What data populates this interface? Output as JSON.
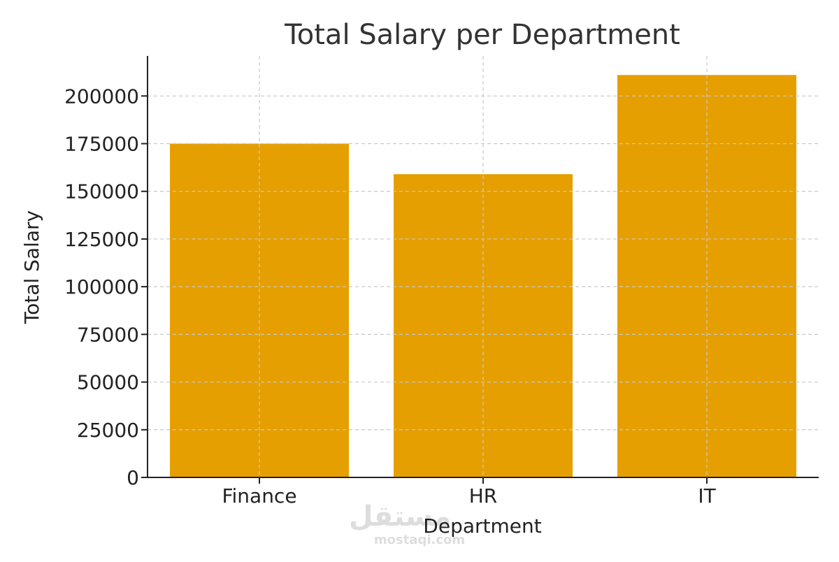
{
  "chart_data": {
    "type": "bar",
    "title": "Total Salary per Department",
    "xlabel": "Department",
    "ylabel": "Total Salary",
    "categories": [
      "Finance",
      "HR",
      "IT"
    ],
    "values": [
      175000,
      159000,
      211000
    ],
    "ylim": [
      0,
      221000
    ],
    "yticks": [
      0,
      25000,
      50000,
      75000,
      100000,
      125000,
      150000,
      175000,
      200000
    ],
    "ytick_labels": [
      "0",
      "25000",
      "50000",
      "75000",
      "100000",
      "125000",
      "150000",
      "175000",
      "200000"
    ],
    "grid": true,
    "bar_color": "#E69F00"
  },
  "watermark": {
    "arabic_text": "مستقل",
    "latin_text": "mostaqi.com"
  }
}
